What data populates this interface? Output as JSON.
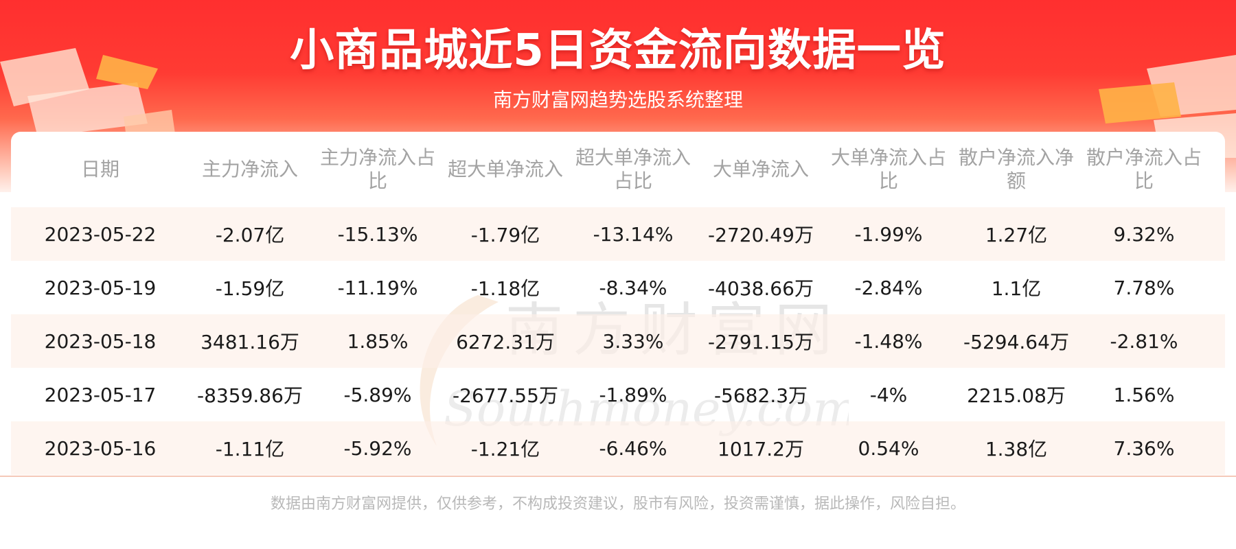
{
  "header": {
    "title": "小商品城近5日资金流向数据一览",
    "subtitle": "南方财富网趋势选股系统整理"
  },
  "watermark": {
    "cn": "南方财富网",
    "en": "Southmoney.com"
  },
  "chart_data": {
    "type": "table",
    "columns": [
      "日期",
      "主力净流入",
      "主力净流入占比",
      "超大单净流入",
      "超大单净流入占比",
      "大单净流入",
      "大单净流入占比",
      "散户净流入净额",
      "散户净流入占比"
    ],
    "rows": [
      [
        "2023-05-22",
        "-2.07亿",
        "-15.13%",
        "-1.79亿",
        "-13.14%",
        "-2720.49万",
        "-1.99%",
        "1.27亿",
        "9.32%"
      ],
      [
        "2023-05-19",
        "-1.59亿",
        "-11.19%",
        "-1.18亿",
        "-8.34%",
        "-4038.66万",
        "-2.84%",
        "1.1亿",
        "7.78%"
      ],
      [
        "2023-05-18",
        "3481.16万",
        "1.85%",
        "6272.31万",
        "3.33%",
        "-2791.15万",
        "-1.48%",
        "-5294.64万",
        "-2.81%"
      ],
      [
        "2023-05-17",
        "-8359.86万",
        "-5.89%",
        "-2677.55万",
        "-1.89%",
        "-5682.3万",
        "-4%",
        "2215.08万",
        "1.56%"
      ],
      [
        "2023-05-16",
        "-1.11亿",
        "-5.92%",
        "-1.21亿",
        "-6.46%",
        "1017.2万",
        "0.54%",
        "1.38亿",
        "7.36%"
      ]
    ]
  },
  "footer": {
    "disclaimer": "数据由南方财富网提供，仅供参考，不构成投资建议，股市有风险，投资需谨慎，据此操作，风险自担。"
  },
  "colors": {
    "banner_red": "#ff3b33",
    "header_text": "#a3a3a3",
    "row_alt": "#fdf0e8",
    "body_text": "#1a1a1a"
  }
}
